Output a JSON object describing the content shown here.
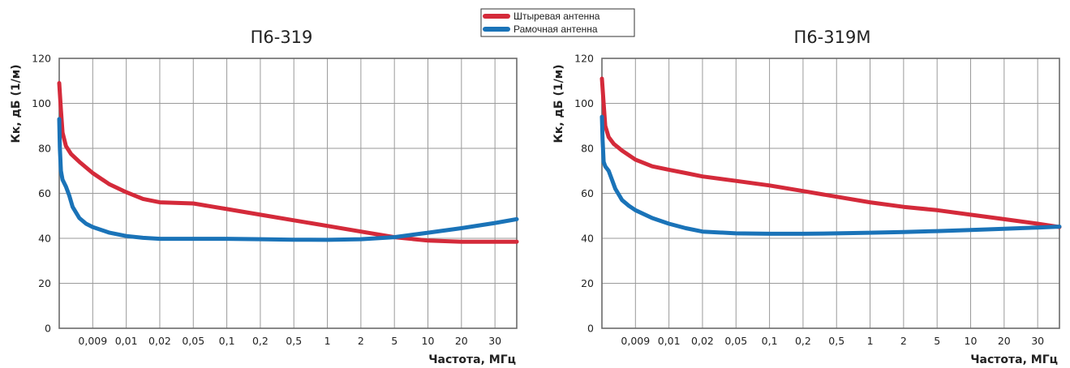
{
  "legend": {
    "items": [
      {
        "label": "Штыревая антенна",
        "color": "#d42a3a"
      },
      {
        "label": "Рамочная антенна",
        "color": "#1a73b8"
      }
    ]
  },
  "chart_data": [
    {
      "type": "line",
      "title": "П6-319",
      "xlabel": "Частота, МГц",
      "ylabel": "Кк, дБ (1/м)",
      "categories": [
        "0,009",
        "0,01",
        "0,02",
        "0,05",
        "0,1",
        "0,2",
        "0,5",
        "1",
        "2",
        "5",
        "10",
        "20",
        "30"
      ],
      "yticks": [
        "0",
        "20",
        "40",
        "60",
        "80",
        "100",
        "120"
      ],
      "ylim": [
        0,
        120
      ],
      "grid": true,
      "series": [
        {
          "name": "Штыревая антенна",
          "color": "#d42a3a",
          "x": [
            0.0,
            0.05,
            0.1,
            0.2,
            0.35,
            0.6,
            1.0,
            1.5,
            2.0,
            2.5,
            3.0,
            4.0,
            5.0,
            6.0,
            7.0,
            8.0,
            9.0,
            10.0,
            11.0,
            12.0,
            13.0,
            13.65
          ],
          "y": [
            109,
            97,
            87,
            81,
            77.5,
            74,
            69,
            64,
            60.5,
            57.5,
            56,
            55.5,
            53,
            50.5,
            48,
            45.5,
            43,
            40.5,
            39,
            38.5,
            38.5,
            38.5
          ]
        },
        {
          "name": "Рамочная антенна",
          "color": "#1a73b8",
          "x": [
            0.0,
            0.02,
            0.05,
            0.1,
            0.2,
            0.3,
            0.4,
            0.6,
            0.8,
            1.0,
            1.5,
            2.0,
            2.5,
            3.0,
            4.0,
            5.0,
            6.0,
            7.0,
            8.0,
            9.0,
            10.0,
            11.0,
            12.0,
            13.0,
            13.65
          ],
          "y": [
            93,
            80,
            70,
            66,
            63,
            59,
            54,
            49,
            46.5,
            45,
            42.5,
            41,
            40.2,
            39.8,
            39.8,
            39.8,
            39.6,
            39.4,
            39.3,
            39.6,
            40.5,
            42.5,
            44.5,
            46.8,
            48.5
          ]
        }
      ]
    },
    {
      "type": "line",
      "title": "П6-319М",
      "xlabel": "Частота, МГц",
      "ylabel": "Кк, дБ (1/м)",
      "categories": [
        "0,009",
        "0,01",
        "0,02",
        "0,05",
        "0,1",
        "0,2",
        "0,5",
        "1",
        "2",
        "5",
        "10",
        "20",
        "30"
      ],
      "yticks": [
        "0",
        "20",
        "40",
        "60",
        "80",
        "100",
        "120"
      ],
      "ylim": [
        0,
        120
      ],
      "grid": true,
      "series": [
        {
          "name": "Штыревая антенна",
          "color": "#d42a3a",
          "x": [
            0.0,
            0.05,
            0.1,
            0.2,
            0.35,
            0.6,
            1.0,
            1.5,
            2.0,
            2.5,
            3.0,
            4.0,
            5.0,
            6.0,
            7.0,
            8.0,
            9.0,
            10.0,
            11.0,
            12.0,
            13.0,
            13.65
          ],
          "y": [
            111,
            100,
            90,
            85,
            82,
            79,
            75,
            72,
            70.5,
            69,
            67.5,
            65.5,
            63.5,
            61,
            58.5,
            56,
            54,
            52.5,
            50.5,
            48.5,
            46.5,
            45
          ]
        },
        {
          "name": "Рамочная антенна",
          "color": "#1a73b8",
          "x": [
            0.0,
            0.02,
            0.05,
            0.1,
            0.2,
            0.3,
            0.4,
            0.6,
            0.8,
            1.0,
            1.5,
            2.0,
            2.5,
            3.0,
            4.0,
            5.0,
            6.0,
            7.0,
            8.0,
            9.0,
            10.0,
            11.0,
            12.0,
            13.0,
            13.65
          ],
          "y": [
            94,
            84,
            74,
            72,
            70,
            66,
            62,
            57,
            54.5,
            52.5,
            49,
            46.5,
            44.5,
            43,
            42.2,
            42,
            42,
            42.2,
            42.5,
            42.8,
            43.2,
            43.7,
            44.2,
            44.8,
            45.2
          ]
        }
      ]
    }
  ]
}
